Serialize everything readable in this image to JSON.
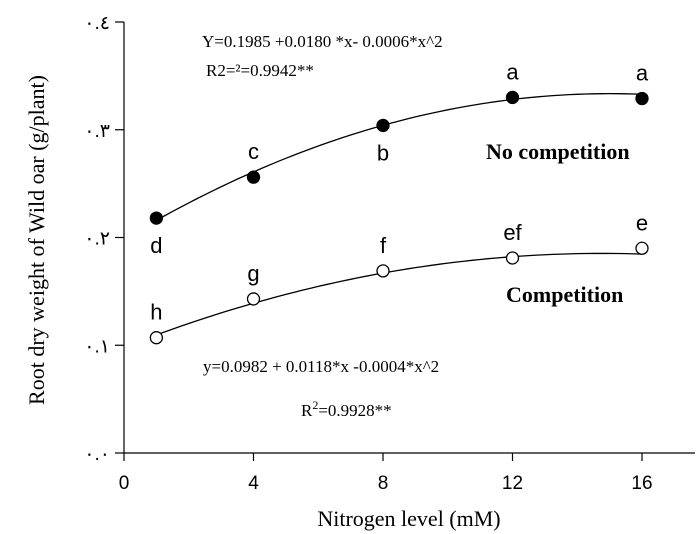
{
  "chart_data": {
    "type": "scatter",
    "xlabel": "Nitrogen level (mM)",
    "ylabel": "Root dry weight of Wild oar (g/plant)",
    "xlim": [
      0,
      16
    ],
    "ylim": [
      0,
      0.4
    ],
    "x_ticks": [
      0,
      4,
      8,
      12,
      16
    ],
    "x_tick_labels": [
      "0",
      "4",
      "8",
      "12",
      "16"
    ],
    "y_ticks": [
      0,
      0.1,
      0.2,
      0.3,
      0.4
    ],
    "y_tick_labels": [
      "٠.٠",
      "٠.١",
      "٠.٢",
      "٠.٣",
      "٠.٤"
    ],
    "grid": false,
    "series": [
      {
        "name": "No competition",
        "marker": "filled-circle",
        "x": [
          1,
          4,
          8,
          12,
          16
        ],
        "y": [
          0.218,
          0.256,
          0.304,
          0.33,
          0.329
        ],
        "letters": [
          "d",
          "c",
          "b",
          "a",
          "a"
        ],
        "fit": {
          "a": 0.1985,
          "b": 0.018,
          "c": -0.0006,
          "x_range": [
            1,
            16
          ]
        },
        "equation": "Y=0.1985 +0.0180 *x- 0.0006*x^2",
        "r2_text": "R2=²=0.9942**"
      },
      {
        "name": "Competition",
        "marker": "open-circle",
        "x": [
          1,
          4,
          8,
          12,
          16
        ],
        "y": [
          0.107,
          0.143,
          0.169,
          0.181,
          0.19
        ],
        "letters": [
          "h",
          "g",
          "f",
          "ef",
          "e"
        ],
        "fit": {
          "a": 0.0982,
          "b": 0.0118,
          "c": -0.0004,
          "x_range": [
            1,
            16
          ]
        },
        "equation": "y=0.0982 + 0.0118*x -0.0004*x^2",
        "r2_text_base": "R",
        "r2_text_sup": "2",
        "r2_text_rest": "=0.9928**"
      }
    ]
  }
}
